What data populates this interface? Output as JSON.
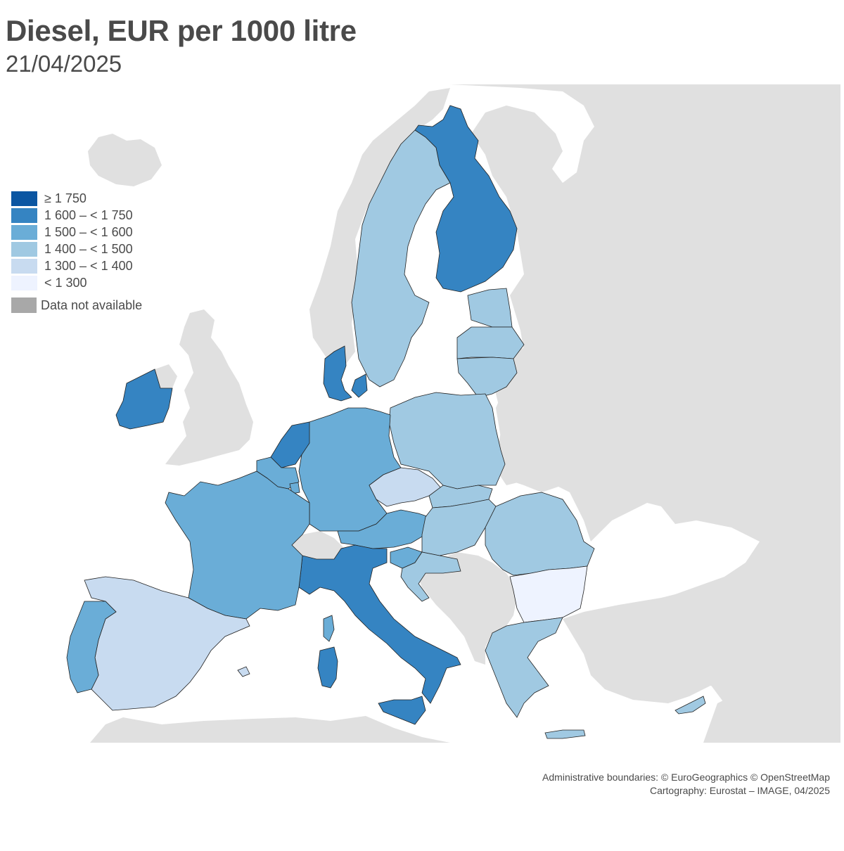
{
  "title": "Diesel, EUR per 1000 litre",
  "subtitle": "21/04/2025",
  "colors": {
    "c1750": "#0b56a2",
    "c1600": "#3584c2",
    "c1500": "#6aadd7",
    "c1400": "#a0c9e2",
    "c1300": "#c8dbf0",
    "c_lt1300": "#eef3ff",
    "na": "#a8a8a8",
    "non_eu_land": "#e0e0e0",
    "sea": "#ffffff"
  },
  "legend": {
    "items": [
      {
        "label": "≥ 1 750",
        "color": "#0b56a2"
      },
      {
        "label": "1 600 – < 1 750",
        "color": "#3584c2"
      },
      {
        "label": "1 500 – < 1 600",
        "color": "#6aadd7"
      },
      {
        "label": "1 400 – < 1 500",
        "color": "#a0c9e2"
      },
      {
        "label": "1 300 – < 1 400",
        "color": "#c8dbf0"
      },
      {
        "label": "< 1 300",
        "color": "#eef3ff"
      }
    ],
    "na_label": "Data not available",
    "na_color": "#a8a8a8"
  },
  "regions": {
    "Finland": "1 600 – < 1 750",
    "Sweden": "1 400 – < 1 500",
    "Denmark": "1 600 – < 1 750",
    "Ireland": "1 600 – < 1 750",
    "Netherlands": "1 600 – < 1 750",
    "Italy": "1 600 – < 1 750",
    "Estonia": "1 400 – < 1 500",
    "Latvia": "1 400 – < 1 500",
    "Lithuania": "1 400 – < 1 500",
    "Poland": "1 400 – < 1 500",
    "Germany": "1 500 – < 1 600",
    "Belgium": "1 500 – < 1 600",
    "France": "1 500 – < 1 600",
    "Portugal": "1 500 – < 1 600",
    "Austria": "1 500 – < 1 600",
    "Slovenia": "1 500 – < 1 600",
    "Czechia": "1 300 – < 1 400",
    "Spain": "1 300 – < 1 400",
    "Slovakia": "1 400 – < 1 500",
    "Hungary": "1 400 – < 1 500",
    "Romania": "1 400 – < 1 500",
    "Croatia": "1 400 – < 1 500",
    "Greece": "1 400 – < 1 500",
    "Cyprus": "1 400 – < 1 500",
    "Bulgaria": "< 1 300",
    "Luxembourg": "1 500 – < 1 600"
  },
  "credits": {
    "line1": "Administrative boundaries: © EuroGeographics © OpenStreetMap",
    "line2": "Cartography: Eurostat – IMAGE, 04/2025"
  }
}
